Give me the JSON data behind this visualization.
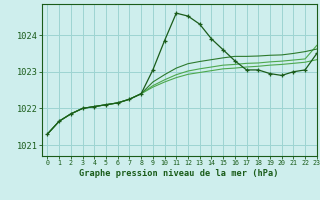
{
  "title": "Graphe pression niveau de la mer (hPa)",
  "xlim": [
    -0.5,
    23
  ],
  "ylim": [
    1020.7,
    1024.85
  ],
  "yticks": [
    1021,
    1022,
    1023,
    1024
  ],
  "xticks": [
    0,
    1,
    2,
    3,
    4,
    5,
    6,
    7,
    8,
    9,
    10,
    11,
    12,
    13,
    14,
    15,
    16,
    17,
    18,
    19,
    20,
    21,
    22,
    23
  ],
  "bg_color": "#ceeeed",
  "grid_color": "#9dd4d2",
  "line_color_dark": "#1a5c1a",
  "line_color_mid": "#2d7a2d",
  "line_color_light": "#4da84d",
  "series1_x": [
    0,
    1,
    2,
    3,
    4,
    5,
    6,
    7,
    8,
    9,
    10,
    11,
    12,
    13,
    14,
    15,
    16,
    17,
    18,
    19,
    20,
    21,
    22,
    23
  ],
  "series1_y": [
    1021.3,
    1021.65,
    1021.85,
    1022.0,
    1022.05,
    1022.1,
    1022.15,
    1022.25,
    1022.4,
    1023.05,
    1023.85,
    1024.6,
    1024.52,
    1024.3,
    1023.9,
    1023.6,
    1023.3,
    1023.05,
    1023.05,
    1022.95,
    1022.9,
    1023.0,
    1023.05,
    1023.5
  ],
  "series2_x": [
    0,
    1,
    2,
    3,
    4,
    5,
    6,
    7,
    8,
    9,
    10,
    11,
    12,
    13,
    14,
    15,
    16,
    17,
    18,
    19,
    20,
    21,
    22,
    23
  ],
  "series2_y": [
    1021.3,
    1021.65,
    1021.85,
    1022.0,
    1022.05,
    1022.1,
    1022.15,
    1022.25,
    1022.4,
    1022.72,
    1022.92,
    1023.1,
    1023.22,
    1023.28,
    1023.33,
    1023.38,
    1023.42,
    1023.42,
    1023.43,
    1023.45,
    1023.46,
    1023.5,
    1023.55,
    1023.62
  ],
  "series3_x": [
    0,
    1,
    2,
    3,
    4,
    5,
    6,
    7,
    8,
    9,
    10,
    11,
    12,
    13,
    14,
    15,
    16,
    17,
    18,
    19,
    20,
    21,
    22,
    23
  ],
  "series3_y": [
    1021.3,
    1021.65,
    1021.85,
    1022.0,
    1022.05,
    1022.1,
    1022.15,
    1022.25,
    1022.4,
    1022.62,
    1022.78,
    1022.92,
    1023.02,
    1023.08,
    1023.13,
    1023.18,
    1023.2,
    1023.23,
    1023.24,
    1023.27,
    1023.29,
    1023.32,
    1023.35,
    1023.72
  ],
  "series4_x": [
    0,
    1,
    2,
    3,
    4,
    5,
    6,
    7,
    8,
    9,
    10,
    11,
    12,
    13,
    14,
    15,
    16,
    17,
    18,
    19,
    20,
    21,
    22,
    23
  ],
  "series4_y": [
    1021.3,
    1021.65,
    1021.85,
    1022.0,
    1022.05,
    1022.1,
    1022.15,
    1022.25,
    1022.4,
    1022.58,
    1022.72,
    1022.84,
    1022.93,
    1022.98,
    1023.03,
    1023.08,
    1023.1,
    1023.13,
    1023.15,
    1023.18,
    1023.2,
    1023.23,
    1023.26,
    1023.33
  ]
}
